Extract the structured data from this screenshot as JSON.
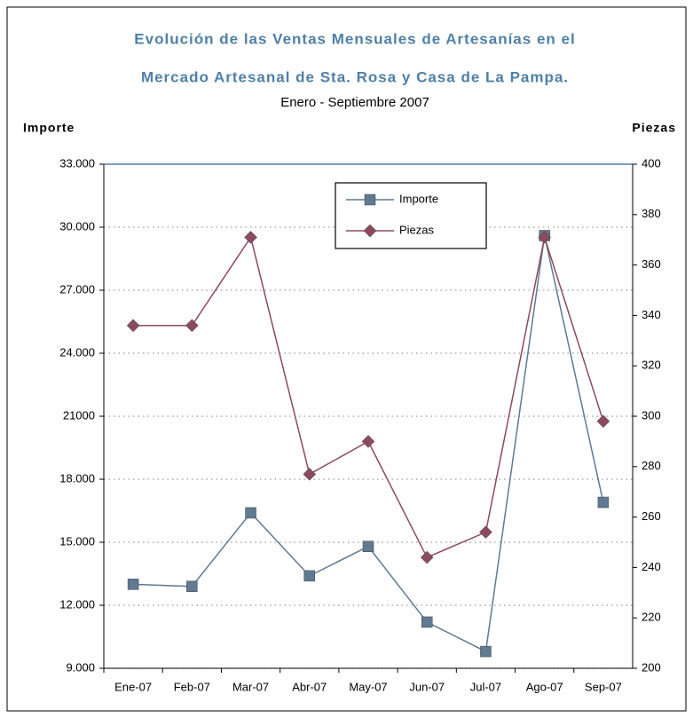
{
  "chart_data": {
    "type": "line",
    "title": [
      "Evolución de las Ventas Mensuales de Artesanías en el",
      "Mercado Artesanal de Sta. Rosa y Casa de La Pampa."
    ],
    "subtitle": "Enero - Septiembre 2007",
    "ylabel": "Importe",
    "y2label": "Piezas",
    "categories": [
      "Ene-07",
      "Feb-07",
      "Mar-07",
      "Abr-07",
      "May-07",
      "Jun-07",
      "Jul-07",
      "Ago-07",
      "Sep-07"
    ],
    "series": [
      {
        "name": "Importe",
        "color": "#5f7a91",
        "marker": "square",
        "values": [
          13000,
          12900,
          16400,
          13400,
          14800,
          11200,
          9800,
          29600,
          16900
        ]
      },
      {
        "name": "Piezas",
        "color": "#8b4a5e",
        "marker": "diamond",
        "axis": "y2",
        "values": [
          336,
          336,
          371,
          277,
          290,
          244,
          254,
          371,
          298
        ]
      }
    ],
    "ylim": [
      9000,
      33000
    ],
    "yticks": [
      {
        "value": 9000,
        "label": "9.000"
      },
      {
        "value": 12000,
        "label": "12.000"
      },
      {
        "value": 15000,
        "label": "15.000"
      },
      {
        "value": 18000,
        "label": "18.000"
      },
      {
        "value": 21000,
        "label": "21000"
      },
      {
        "value": 24000,
        "label": "24.000"
      },
      {
        "value": 27000,
        "label": "27.000"
      },
      {
        "value": 30000,
        "label": "30.000"
      },
      {
        "value": 33000,
        "label": "33.000"
      }
    ],
    "y2lim": [
      200,
      400
    ],
    "y2ticks": [
      200,
      220,
      240,
      260,
      280,
      300,
      320,
      340,
      360,
      380,
      400
    ],
    "grid": true,
    "legend": "top"
  }
}
